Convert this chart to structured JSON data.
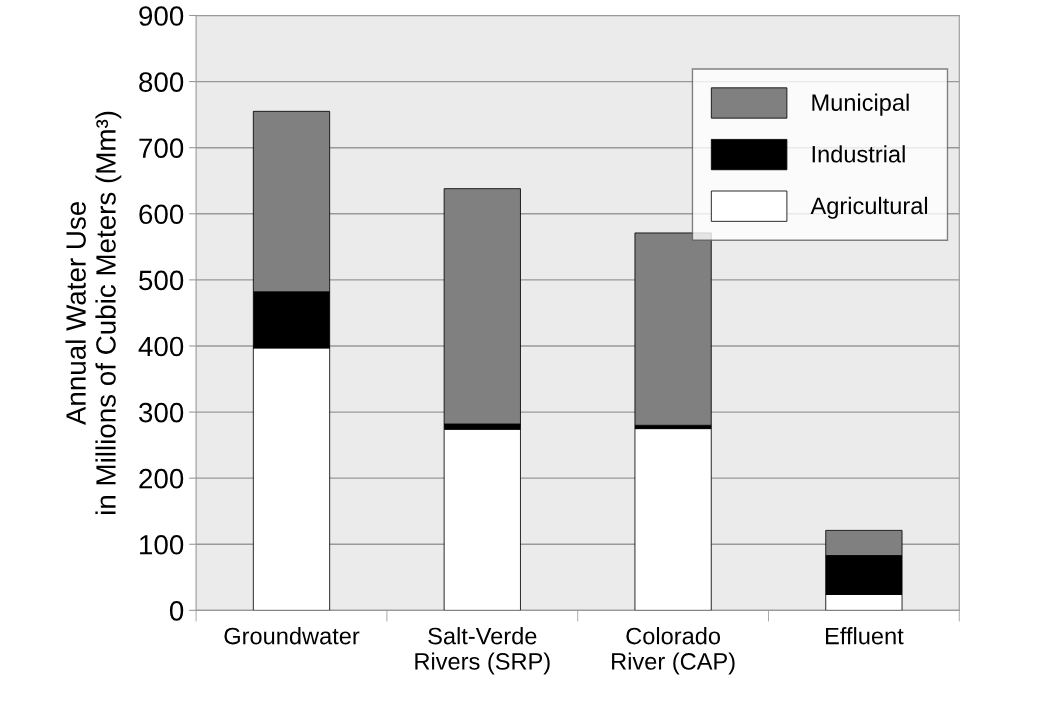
{
  "chart_data": {
    "type": "bar",
    "stacked": true,
    "categories": [
      "Groundwater",
      "Salt-Verde\nRivers (SRP)",
      "Colorado\nRiver (CAP)",
      "Effluent"
    ],
    "ylabel": "Annual Water Use\nin Millions of Cubic Meters (Mm³)",
    "series": [
      {
        "name": "Agricultural",
        "color": "#ffffff",
        "values": [
          397,
          274,
          275,
          24
        ]
      },
      {
        "name": "Industrial",
        "color": "#000000",
        "values": [
          85,
          8,
          5,
          59
        ]
      },
      {
        "name": "Municipal",
        "color": "#808080",
        "values": [
          273,
          356,
          291,
          38
        ]
      }
    ],
    "ylim": [
      0,
      900
    ],
    "yticks": [
      0,
      100,
      200,
      300,
      400,
      500,
      600,
      700,
      800,
      900
    ],
    "grid": "y",
    "legend": "top right"
  }
}
